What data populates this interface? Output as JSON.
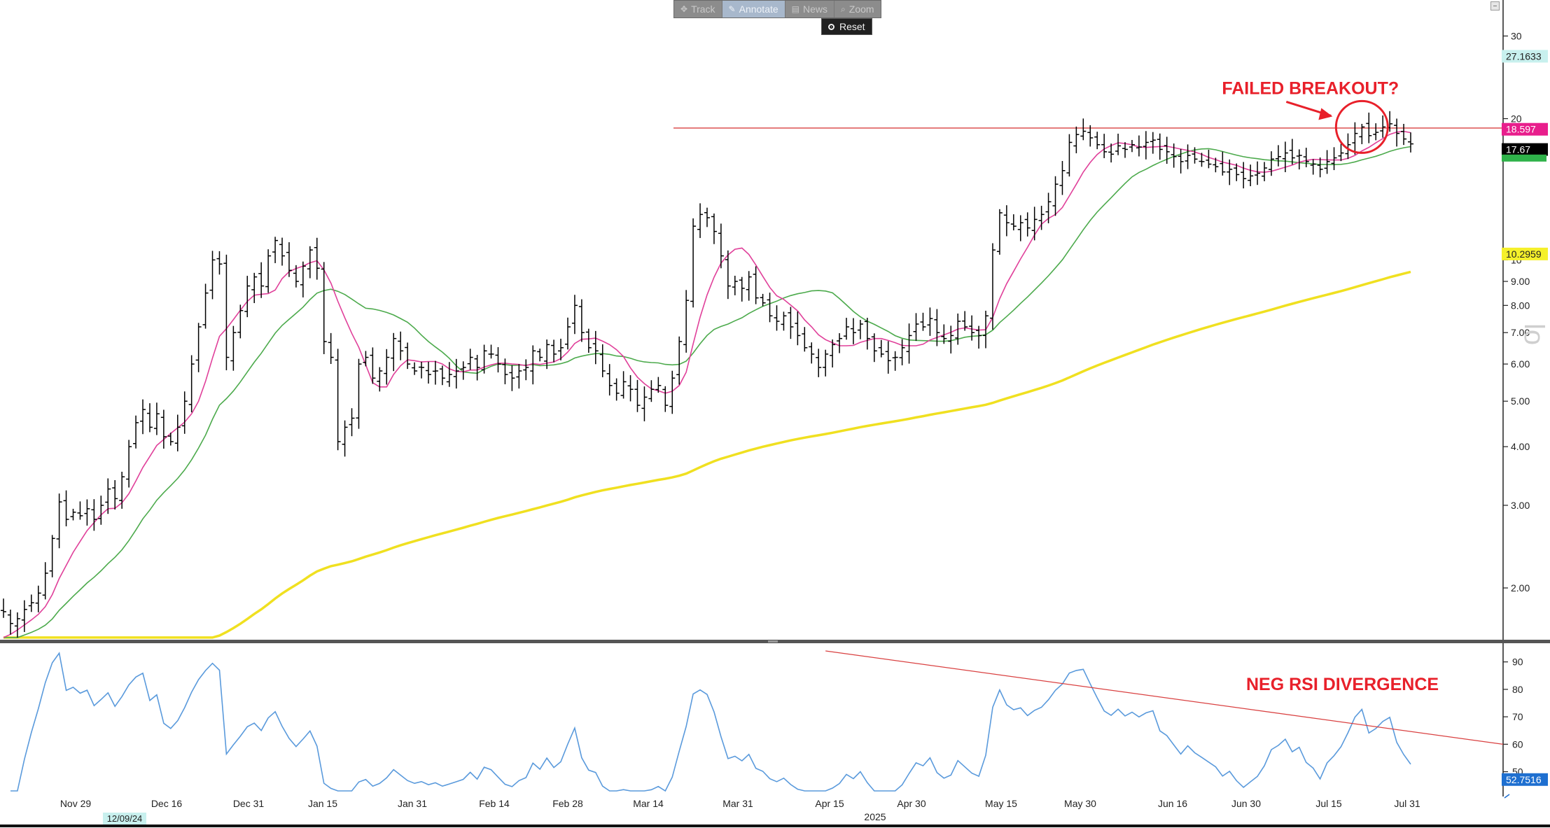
{
  "toolbar": {
    "track": "Track",
    "annotate": "Annotate",
    "news": "News",
    "zoom": "Zoom",
    "reset": "Reset",
    "icons": {
      "track": "crosshair-icon",
      "annotate": "pencil-icon",
      "news": "newspaper-icon",
      "zoom": "magnifier-icon",
      "reset": "radio-icon"
    }
  },
  "chart_data": [
    {
      "type": "ohlc",
      "scale": "log",
      "ylim": [
        1.6,
        34
      ],
      "yticks": [
        {
          "value": 30,
          "label": "30"
        },
        {
          "value": 20,
          "label": "20"
        },
        {
          "value": 10,
          "label": "10"
        },
        {
          "value": 9,
          "label": "9.00"
        },
        {
          "value": 8,
          "label": "8.00"
        },
        {
          "value": 7,
          "label": "7.00"
        },
        {
          "value": 6,
          "label": "6.00"
        },
        {
          "value": 5,
          "label": "5.00"
        },
        {
          "value": 4,
          "label": "4.00"
        },
        {
          "value": 3,
          "label": "3.00"
        },
        {
          "value": 2,
          "label": "2.00"
        }
      ],
      "xaxis": {
        "labels": [
          "Nov 29",
          "Dec 16",
          "Dec 31",
          "Jan 15",
          "Jan 31",
          "Feb 14",
          "Feb 28",
          "Mar 14",
          "Mar 31",
          "Apr 15",
          "Apr 30",
          "May 15",
          "May 30",
          "Jun 16",
          "Jun 30",
          "Jul 15",
          "Jul 31"
        ],
        "year_label": "2025",
        "cursor_date": "12/09/24"
      },
      "closes": [
        1.78,
        1.68,
        1.72,
        1.8,
        1.86,
        1.95,
        2.15,
        2.55,
        3.05,
        2.8,
        2.9,
        2.85,
        2.95,
        2.8,
        3.0,
        3.25,
        3.1,
        3.45,
        4.0,
        4.5,
        4.8,
        4.4,
        4.7,
        4.2,
        4.1,
        4.4,
        5.0,
        6.0,
        7.2,
        8.5,
        10.0,
        9.8,
        6.2,
        7.0,
        7.8,
        8.8,
        9.2,
        8.8,
        10.2,
        11.0,
        10.2,
        9.5,
        9.0,
        9.7,
        10.5,
        9.6,
        6.7,
        6.2,
        4.1,
        4.4,
        4.6,
        6.0,
        6.2,
        5.6,
        5.8,
        6.2,
        6.8,
        6.4,
        6.0,
        5.8,
        5.9,
        5.7,
        5.8,
        5.6,
        5.7,
        5.8,
        5.9,
        6.2,
        5.9,
        6.4,
        6.3,
        6.0,
        5.7,
        5.6,
        5.8,
        5.9,
        6.4,
        6.2,
        6.6,
        6.3,
        6.5,
        7.2,
        8.0,
        7.0,
        6.5,
        6.4,
        5.8,
        5.4,
        5.2,
        5.5,
        5.3,
        4.9,
        5.1,
        5.3,
        5.4,
        4.9,
        5.6,
        6.7,
        8.2,
        11.8,
        12.5,
        12.3,
        11.5,
        10.2,
        8.8,
        9.0,
        8.7,
        9.2,
        8.3,
        8.1,
        7.6,
        7.4,
        7.6,
        7.2,
        6.9,
        6.5,
        6.3,
        5.9,
        6.3,
        6.6,
        6.8,
        7.2,
        7.0,
        7.3,
        6.8,
        6.4,
        6.3,
        6.1,
        6.2,
        6.5,
        6.9,
        7.3,
        7.2,
        7.5,
        7.0,
        6.8,
        6.9,
        7.4,
        7.2,
        7.0,
        6.9,
        7.6,
        10.5,
        12.6,
        12.0,
        11.8,
        12.0,
        11.7,
        12.2,
        12.5,
        13.3,
        14.5,
        15.5,
        17.8,
        18.5,
        18.8,
        18.2,
        17.6,
        17.0,
        16.8,
        17.5,
        17.2,
        17.6,
        17.4,
        17.8,
        18.0,
        17.2,
        17.0,
        16.6,
        16.2,
        16.7,
        16.4,
        16.2,
        16.0,
        15.8,
        15.4,
        15.6,
        15.2,
        14.9,
        15.1,
        15.3,
        15.7,
        16.4,
        16.6,
        16.9,
        16.5,
        16.7,
        16.2,
        16.0,
        15.6,
        16.2,
        16.5,
        16.9,
        17.6,
        18.6,
        19.2,
        18.4,
        18.7,
        19.2,
        19.5,
        18.6,
        18.1,
        17.67
      ],
      "series": [
        {
          "name": "",
          "color": "#e0409a",
          "period": 8
        },
        {
          "name": "",
          "color": "#4caa4c",
          "period": 21
        },
        {
          "name": "",
          "color": "#f0e020",
          "period": 200
        }
      ],
      "price_tags": [
        {
          "value": "27.1633",
          "bg": "#c8f0ee",
          "fg": "#222222"
        },
        {
          "value": "18.597",
          "bg": "#e81e8c",
          "fg": "#ffffff"
        },
        {
          "value": "17.67",
          "bg": "#000000",
          "fg": "#ffffff"
        },
        {
          "value": "10.2959",
          "bg": "#f5f02a",
          "fg": "#222222"
        }
      ],
      "resistance_level": 19.1,
      "annotation": "FAILED BREAKOUT?",
      "watermark": "lo",
      "colors": {
        "bars": "#000000",
        "annotation": "#e8202a",
        "resistance": "#d94040"
      }
    },
    {
      "type": "line",
      "name": "RSI",
      "ylim": [
        43,
        94
      ],
      "yticks": [
        {
          "value": 90,
          "label": "90"
        },
        {
          "value": 80,
          "label": "80"
        },
        {
          "value": 70,
          "label": "70"
        },
        {
          "value": 60,
          "label": "60"
        },
        {
          "value": 50,
          "label": "50"
        }
      ],
      "last_value": "52.7516",
      "annotation": "NEG RSI DIVERGENCE",
      "trendline": {
        "start_x_index": 118,
        "start_value": 94,
        "end_value": 60
      },
      "color": "#5a9adc"
    }
  ]
}
